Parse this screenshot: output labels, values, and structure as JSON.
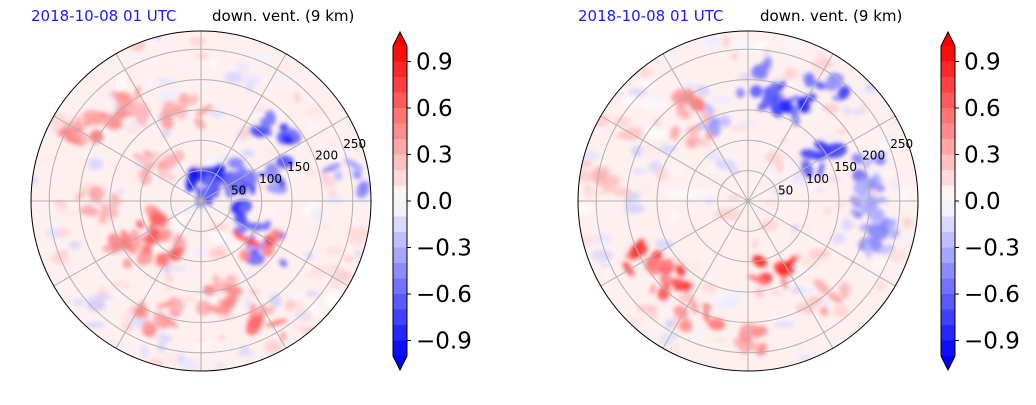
{
  "chart_data": [
    {
      "type": "heatmap",
      "projection": "polar",
      "title_left": "2018-10-08 01 UTC",
      "title_right": "down. vent. (9 km)",
      "radial_ticks": [
        "50",
        "100",
        "150",
        "200",
        "250"
      ],
      "colorbar": {
        "ticks": [
          "0.9",
          "0.6",
          "0.3",
          "0.0",
          "−0.3",
          "−0.6",
          "−0.9"
        ],
        "range": [
          -1.0,
          1.0
        ],
        "extend": "both",
        "colormap": "bwr"
      },
      "features": [
        {
          "angle_deg": 70,
          "radius": 35,
          "value": -1.0
        },
        {
          "angle_deg": 95,
          "radius": 30,
          "value": -1.0
        },
        {
          "angle_deg": 40,
          "radius": 60,
          "value": -0.9
        },
        {
          "angle_deg": 20,
          "radius": 120,
          "value": -0.8
        },
        {
          "angle_deg": 45,
          "radius": 170,
          "value": -0.9
        },
        {
          "angle_deg": -20,
          "radius": 100,
          "value": -0.9
        },
        {
          "angle_deg": -40,
          "radius": 140,
          "value": -0.7
        },
        {
          "angle_deg": 10,
          "radius": 240,
          "value": -0.5
        },
        {
          "angle_deg": 200,
          "radius": 90,
          "value": 0.8
        },
        {
          "angle_deg": 215,
          "radius": 140,
          "value": 0.6
        },
        {
          "angle_deg": 230,
          "radius": 100,
          "value": 0.7
        },
        {
          "angle_deg": 130,
          "radius": 200,
          "value": 0.5
        },
        {
          "angle_deg": 150,
          "radius": 230,
          "value": 0.6
        },
        {
          "angle_deg": 180,
          "radius": 170,
          "value": 0.4
        },
        {
          "angle_deg": 250,
          "radius": 200,
          "value": 0.5
        },
        {
          "angle_deg": 280,
          "radius": 160,
          "value": 0.5
        },
        {
          "angle_deg": 300,
          "radius": 230,
          "value": 0.6
        },
        {
          "angle_deg": 320,
          "radius": 120,
          "value": 0.9
        },
        {
          "angle_deg": 100,
          "radius": 150,
          "value": 0.4
        },
        {
          "angle_deg": 140,
          "radius": 90,
          "value": 0.4
        }
      ]
    },
    {
      "type": "heatmap",
      "projection": "polar",
      "title_left": "2018-10-08 01 UTC",
      "title_right": "down. vent. (9 km)",
      "radial_ticks": [
        "50",
        "100",
        "150",
        "200",
        "250"
      ],
      "colorbar": {
        "ticks": [
          "0.9",
          "0.6",
          "0.3",
          "0.0",
          "−0.3",
          "−0.6",
          "−0.9"
        ],
        "range": [
          -1.0,
          1.0
        ],
        "extend": "both",
        "colormap": "bwr"
      },
      "features": [
        {
          "angle_deg": 70,
          "radius": 170,
          "value": -0.9
        },
        {
          "angle_deg": 55,
          "radius": 230,
          "value": -0.8
        },
        {
          "angle_deg": 85,
          "radius": 200,
          "value": -0.7
        },
        {
          "angle_deg": 30,
          "radius": 150,
          "value": -0.8
        },
        {
          "angle_deg": 15,
          "radius": 200,
          "value": -0.6
        },
        {
          "angle_deg": 0,
          "radius": 190,
          "value": -0.5
        },
        {
          "angle_deg": -15,
          "radius": 220,
          "value": -0.5
        },
        {
          "angle_deg": 110,
          "radius": 140,
          "value": -0.5
        },
        {
          "angle_deg": 120,
          "radius": 190,
          "value": 0.6
        },
        {
          "angle_deg": 130,
          "radius": 150,
          "value": 0.4
        },
        {
          "angle_deg": 210,
          "radius": 190,
          "value": 0.9
        },
        {
          "angle_deg": 225,
          "radius": 180,
          "value": 0.8
        },
        {
          "angle_deg": 245,
          "radius": 200,
          "value": 0.6
        },
        {
          "angle_deg": 270,
          "radius": 220,
          "value": 0.5
        },
        {
          "angle_deg": 290,
          "radius": 130,
          "value": 1.0
        },
        {
          "angle_deg": 310,
          "radius": 210,
          "value": 0.4
        },
        {
          "angle_deg": 175,
          "radius": 240,
          "value": 0.3
        }
      ]
    }
  ]
}
